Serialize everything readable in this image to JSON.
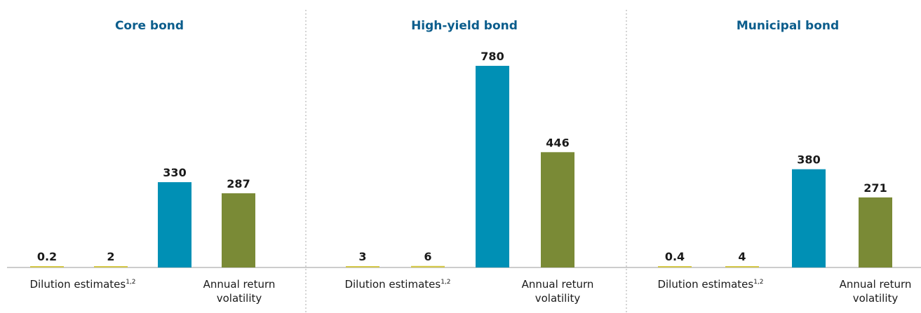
{
  "colors": {
    "title": "#0b5d8c",
    "dilution": "#d4c84a",
    "middle": "#0090b5",
    "volatility": "#7a8a36",
    "axis": "#9a9a9a",
    "separator": "#aaaaaa"
  },
  "chart_data": [
    {
      "type": "bar",
      "title": "Core bond",
      "values": [
        0.2,
        2,
        330,
        287
      ],
      "value_labels": [
        "0.2",
        "2",
        "330",
        "287"
      ],
      "bar_colors": [
        "dilution",
        "dilution",
        "middle",
        "volatility"
      ],
      "category_labels": [
        {
          "text": "Dilution estimates",
          "sup": "1,2"
        },
        {
          "text": "Annual return volatility",
          "lines": [
            "Annual return",
            "volatility"
          ]
        }
      ]
    },
    {
      "type": "bar",
      "title": "High-yield bond",
      "values": [
        3,
        6,
        780,
        446
      ],
      "value_labels": [
        "3",
        "6",
        "780",
        "446"
      ],
      "bar_colors": [
        "dilution",
        "dilution",
        "middle",
        "volatility"
      ],
      "category_labels": [
        {
          "text": "Dilution estimates",
          "sup": "1,2"
        },
        {
          "text": "Annual return volatility",
          "lines": [
            "Annual return",
            "volatility"
          ]
        }
      ]
    },
    {
      "type": "bar",
      "title": "Municipal bond",
      "values": [
        0.4,
        4,
        380,
        271
      ],
      "value_labels": [
        "0.4",
        "4",
        "380",
        "271"
      ],
      "bar_colors": [
        "dilution",
        "dilution",
        "middle",
        "volatility"
      ],
      "category_labels": [
        {
          "text": "Dilution estimates",
          "sup": "1,2"
        },
        {
          "text": "Annual return volatility",
          "lines": [
            "Annual return",
            "volatility"
          ]
        }
      ]
    }
  ]
}
